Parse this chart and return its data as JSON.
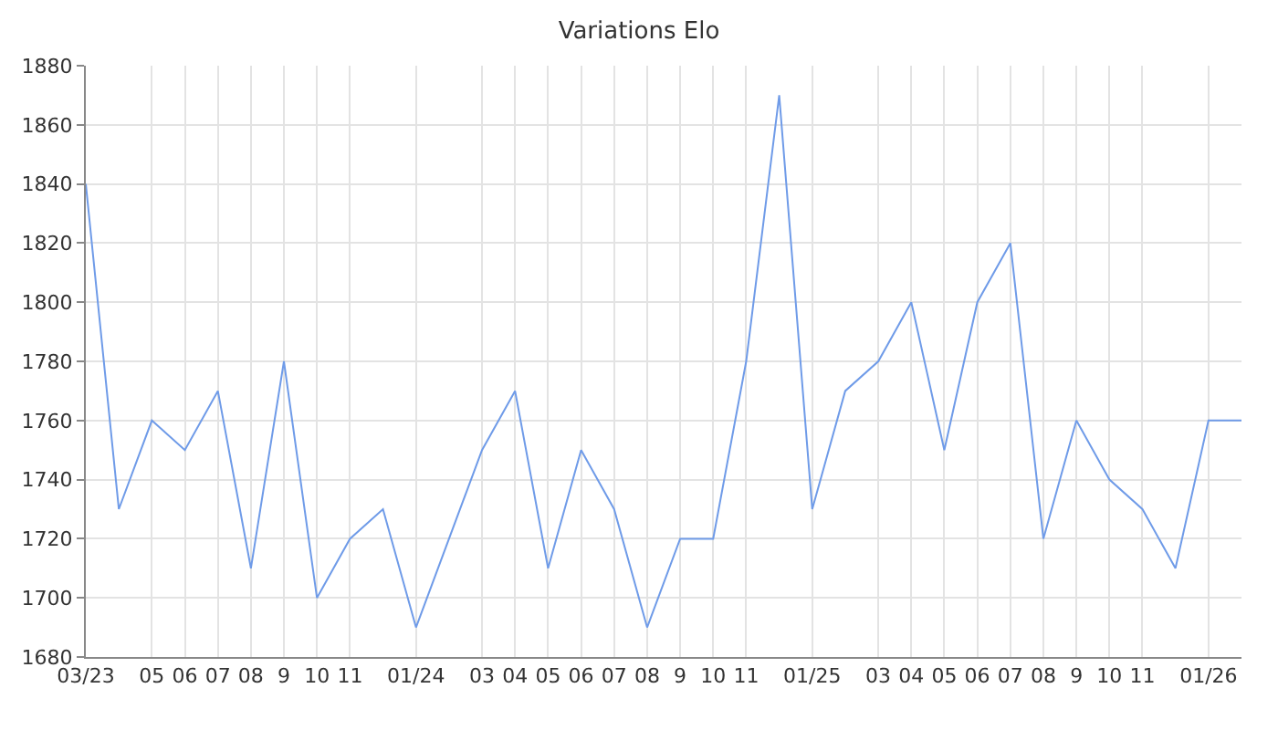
{
  "chart_data": {
    "type": "line",
    "title": "Variations Elo",
    "categories": [
      "03/23",
      null,
      "05",
      "06",
      "07",
      "08",
      "9",
      "10",
      "11",
      null,
      "01/24",
      null,
      "03",
      "04",
      "05",
      "06",
      "07",
      "08",
      "9",
      "10",
      "11",
      null,
      "01/25",
      null,
      "03",
      "04",
      "05",
      "06",
      "07",
      "08",
      "9",
      "10",
      "11",
      null,
      "01/26",
      null
    ],
    "series": [
      {
        "color": "#6f9be8",
        "values": [
          1840,
          1730,
          1760,
          1750,
          1770,
          1710,
          1780,
          1700,
          1720,
          1730,
          1690,
          1720,
          1750,
          1770,
          1710,
          1750,
          1730,
          1690,
          1720,
          1720,
          1780,
          1870,
          1730,
          1770,
          1780,
          1800,
          1750,
          1800,
          1820,
          1720,
          1760,
          1740,
          1730,
          1710,
          1760,
          1760
        ]
      }
    ],
    "ylim": [
      1680,
      1880
    ],
    "yticks": [
      1680,
      1700,
      1720,
      1740,
      1760,
      1780,
      1800,
      1820,
      1840,
      1860,
      1880
    ],
    "grid": true,
    "marker": "none",
    "line_style": "solid"
  }
}
